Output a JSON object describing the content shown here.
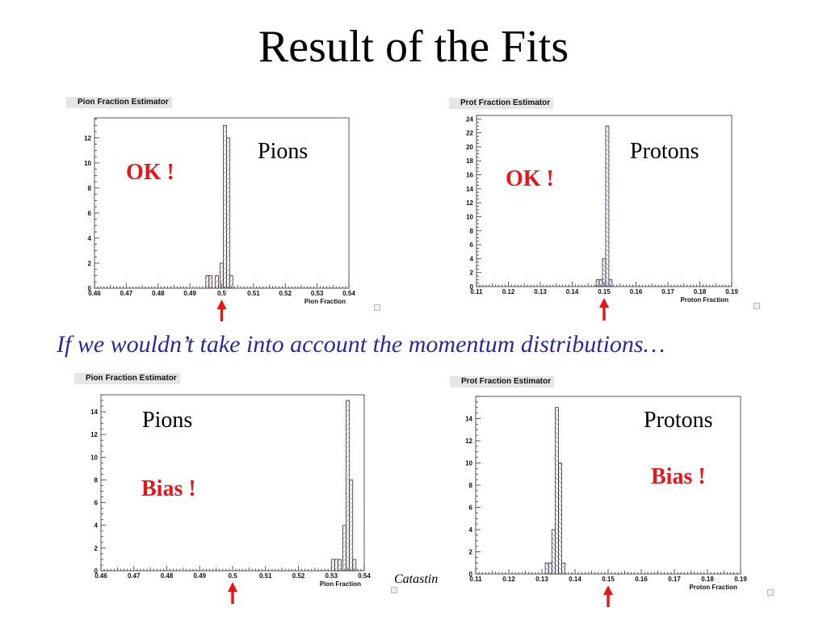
{
  "slide": {
    "title": "Result of the Fits",
    "note": "If we wouldn’t take into account the momentum distributions…",
    "footer_fragment": "Catastin"
  },
  "colors": {
    "verdict": "#e8161b",
    "note": "#2a2aa0",
    "arrow": "#e8161b",
    "pion_hatch": "#c06b6b",
    "proton_hatch": "#5656b0"
  },
  "chart_data": [
    {
      "id": "pion-top",
      "type": "bar",
      "title": "Pion Fraction Estimator",
      "xlabel": "Pion Fraction",
      "ylabel": "",
      "xlim": [
        0.46,
        0.54
      ],
      "ylim": [
        0,
        13.6
      ],
      "xticks": [
        "0.46",
        "0.47",
        "0.48",
        "0.49",
        "0.5",
        "0.51",
        "0.52",
        "0.53",
        "0.54"
      ],
      "yticks": [
        0,
        2,
        4,
        6,
        8,
        10,
        12
      ],
      "bin_width": 0.001,
      "bins": [
        {
          "x": 0.4955,
          "y": 1
        },
        {
          "x": 0.4965,
          "y": 1
        },
        {
          "x": 0.4985,
          "y": 1
        },
        {
          "x": 0.5,
          "y": 2
        },
        {
          "x": 0.501,
          "y": 13
        },
        {
          "x": 0.502,
          "y": 12
        },
        {
          "x": 0.503,
          "y": 1
        }
      ],
      "hatch": "pion",
      "particle": "Pions",
      "verdict": "OK !",
      "true_value": 0.5
    },
    {
      "id": "proton-top",
      "type": "bar",
      "title": "Prot Fraction Estimator",
      "xlabel": "Proton Fraction",
      "ylabel": "",
      "xlim": [
        0.11,
        0.19
      ],
      "ylim": [
        0,
        24.5
      ],
      "xticks": [
        "0.11",
        "0.12",
        "0.13",
        "0.14",
        "0.15",
        "0.16",
        "0.17",
        "0.18",
        "0.19"
      ],
      "yticks": [
        0,
        2,
        4,
        6,
        8,
        10,
        12,
        14,
        16,
        18,
        20,
        22,
        24
      ],
      "bin_width": 0.001,
      "bins": [
        {
          "x": 0.148,
          "y": 1
        },
        {
          "x": 0.149,
          "y": 1
        },
        {
          "x": 0.15,
          "y": 4
        },
        {
          "x": 0.151,
          "y": 23
        },
        {
          "x": 0.152,
          "y": 1
        }
      ],
      "hatch": "proton",
      "particle": "Protons",
      "verdict": "OK !",
      "true_value": 0.15
    },
    {
      "id": "pion-bottom",
      "type": "bar",
      "title": "Pion Fraction Estimator",
      "xlabel": "Pion Fraction",
      "ylabel": "",
      "xlim": [
        0.46,
        0.54
      ],
      "ylim": [
        0,
        15.5
      ],
      "xticks": [
        "0.46",
        "0.47",
        "0.48",
        "0.49",
        "0.5",
        "0.51",
        "0.52",
        "0.53",
        "0.54"
      ],
      "yticks": [
        0,
        2,
        4,
        6,
        8,
        10,
        12,
        14
      ],
      "bin_width": 0.001,
      "bins": [
        {
          "x": 0.5305,
          "y": 1
        },
        {
          "x": 0.5315,
          "y": 1
        },
        {
          "x": 0.5325,
          "y": 1
        },
        {
          "x": 0.534,
          "y": 4
        },
        {
          "x": 0.535,
          "y": 15
        },
        {
          "x": 0.536,
          "y": 8
        },
        {
          "x": 0.537,
          "y": 1
        }
      ],
      "hatch": "pion",
      "particle": "Pions",
      "verdict": "Bias !",
      "true_value": 0.5
    },
    {
      "id": "proton-bottom",
      "type": "bar",
      "title": "Prot Fraction Estimator",
      "xlabel": "Proton Fraction",
      "ylabel": "",
      "xlim": [
        0.11,
        0.19
      ],
      "ylim": [
        0,
        16
      ],
      "xticks": [
        "0.11",
        "0.12",
        "0.13",
        "0.14",
        "0.15",
        "0.16",
        "0.17",
        "0.18",
        "0.19"
      ],
      "yticks": [
        0,
        2,
        4,
        6,
        8,
        10,
        12,
        14
      ],
      "bin_width": 0.001,
      "bins": [
        {
          "x": 0.1315,
          "y": 1
        },
        {
          "x": 0.1325,
          "y": 1
        },
        {
          "x": 0.1335,
          "y": 4
        },
        {
          "x": 0.1345,
          "y": 15
        },
        {
          "x": 0.1355,
          "y": 10
        },
        {
          "x": 0.1365,
          "y": 1
        }
      ],
      "hatch": "proton",
      "particle": "Protons",
      "verdict": "Bias !",
      "true_value": 0.15
    }
  ]
}
